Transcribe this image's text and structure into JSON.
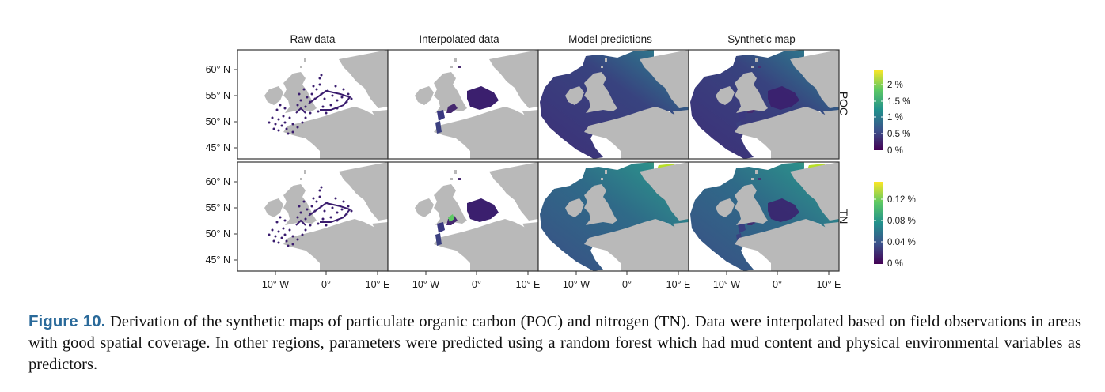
{
  "panels": {
    "columns": [
      "Raw data",
      "Interpolated data",
      "Model predictions",
      "Synthetic map"
    ],
    "rows": [
      "POC",
      "TN"
    ]
  },
  "axes": {
    "y_ticks": [
      "60° N",
      "55° N",
      "50° N",
      "45° N"
    ],
    "x_ticks": [
      "10° W",
      "0°",
      "10° E"
    ]
  },
  "legends": {
    "poc": {
      "ticks": [
        "2 %",
        "1.5 %",
        "1 %",
        "0.5 %",
        "0 %"
      ]
    },
    "tn": {
      "ticks": [
        "0.12 %",
        "0.08 %",
        "0.04 %",
        "0 %"
      ]
    }
  },
  "colors": {
    "land": "#b9b9b9",
    "viridis": [
      "#440154",
      "#3b528b",
      "#21908c",
      "#5dc963",
      "#fde725"
    ]
  },
  "caption": {
    "label": "Figure 10.",
    "text": " Derivation of the synthetic maps of particulate organic carbon (POC) and nitrogen (TN). Data were interpolated based on field observations in areas with good spatial coverage. In other regions, parameters were predicted using a random forest which had mud content and physical environmental variables as predictors."
  }
}
